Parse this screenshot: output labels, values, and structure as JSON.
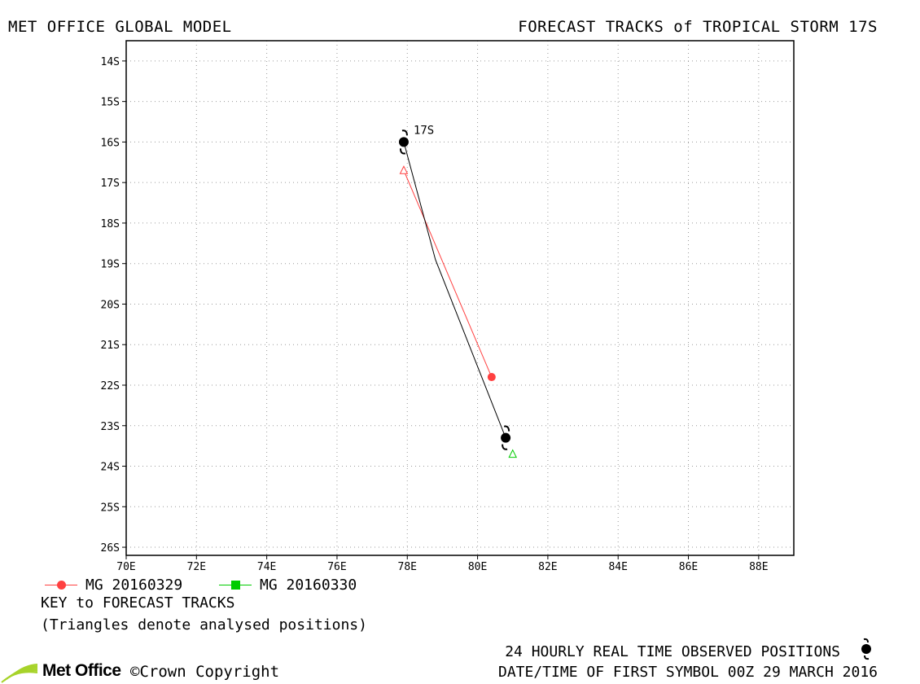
{
  "header": {
    "left": "MET OFFICE GLOBAL MODEL",
    "right": "FORECAST TRACKS of TROPICAL STORM 17S"
  },
  "chart_data": {
    "type": "line",
    "x_axis": {
      "range": [
        70,
        89
      ],
      "ticks": [
        70,
        72,
        74,
        76,
        78,
        80,
        82,
        84,
        86,
        88
      ],
      "tick_labels": [
        "70E",
        "72E",
        "74E",
        "76E",
        "78E",
        "80E",
        "82E",
        "84E",
        "86E",
        "88E"
      ]
    },
    "y_axis": {
      "range": [
        -26.2,
        -13.5
      ],
      "ticks": [
        -14,
        -15,
        -16,
        -17,
        -18,
        -19,
        -20,
        -21,
        -22,
        -23,
        -24,
        -25,
        -26
      ],
      "tick_labels": [
        "14S",
        "15S",
        "16S",
        "17S",
        "18S",
        "19S",
        "20S",
        "21S",
        "22S",
        "23S",
        "24S",
        "25S",
        "26S"
      ]
    },
    "grid": true,
    "storm_label": "17S",
    "observed_track": {
      "color": "#000000",
      "points": [
        [
          77.9,
          -16.0
        ],
        [
          78.8,
          -18.9
        ],
        [
          80.8,
          -23.3
        ]
      ],
      "symbols": [
        [
          77.9,
          -16.0
        ],
        [
          80.8,
          -23.3
        ]
      ]
    },
    "series": [
      {
        "name": "MG 20160329",
        "color": "#ff4040",
        "marker": "circle",
        "points": [
          [
            77.9,
            -16.7
          ],
          [
            80.4,
            -21.8
          ]
        ],
        "triangle_at": [
          77.9,
          -16.7
        ],
        "end_marker_at": [
          80.4,
          -21.8
        ]
      },
      {
        "name": "MG 20160330",
        "color": "#00cc00",
        "marker": "square",
        "points": [
          [
            81.0,
            -23.7
          ]
        ],
        "triangle_at": [
          81.0,
          -23.7
        ]
      }
    ]
  },
  "legend": {
    "items": [
      {
        "label": "MG 20160329",
        "color": "#ff4040",
        "marker": "circle"
      },
      {
        "label": "MG 20160330",
        "color": "#00cc00",
        "marker": "square"
      }
    ]
  },
  "notes": {
    "key": "KEY to FORECAST TRACKS",
    "triangles": "(Triangles denote analysed positions)"
  },
  "footer": {
    "observed": "24 HOURLY REAL TIME OBSERVED POSITIONS",
    "datetime": "DATE/TIME OF FIRST SYMBOL 00Z 29 MARCH 2016",
    "logo": "Met Office",
    "copyright": "©Crown Copyright"
  },
  "colors": {
    "logo_green": "#a7d32a",
    "grid": "#9a9a9a"
  }
}
